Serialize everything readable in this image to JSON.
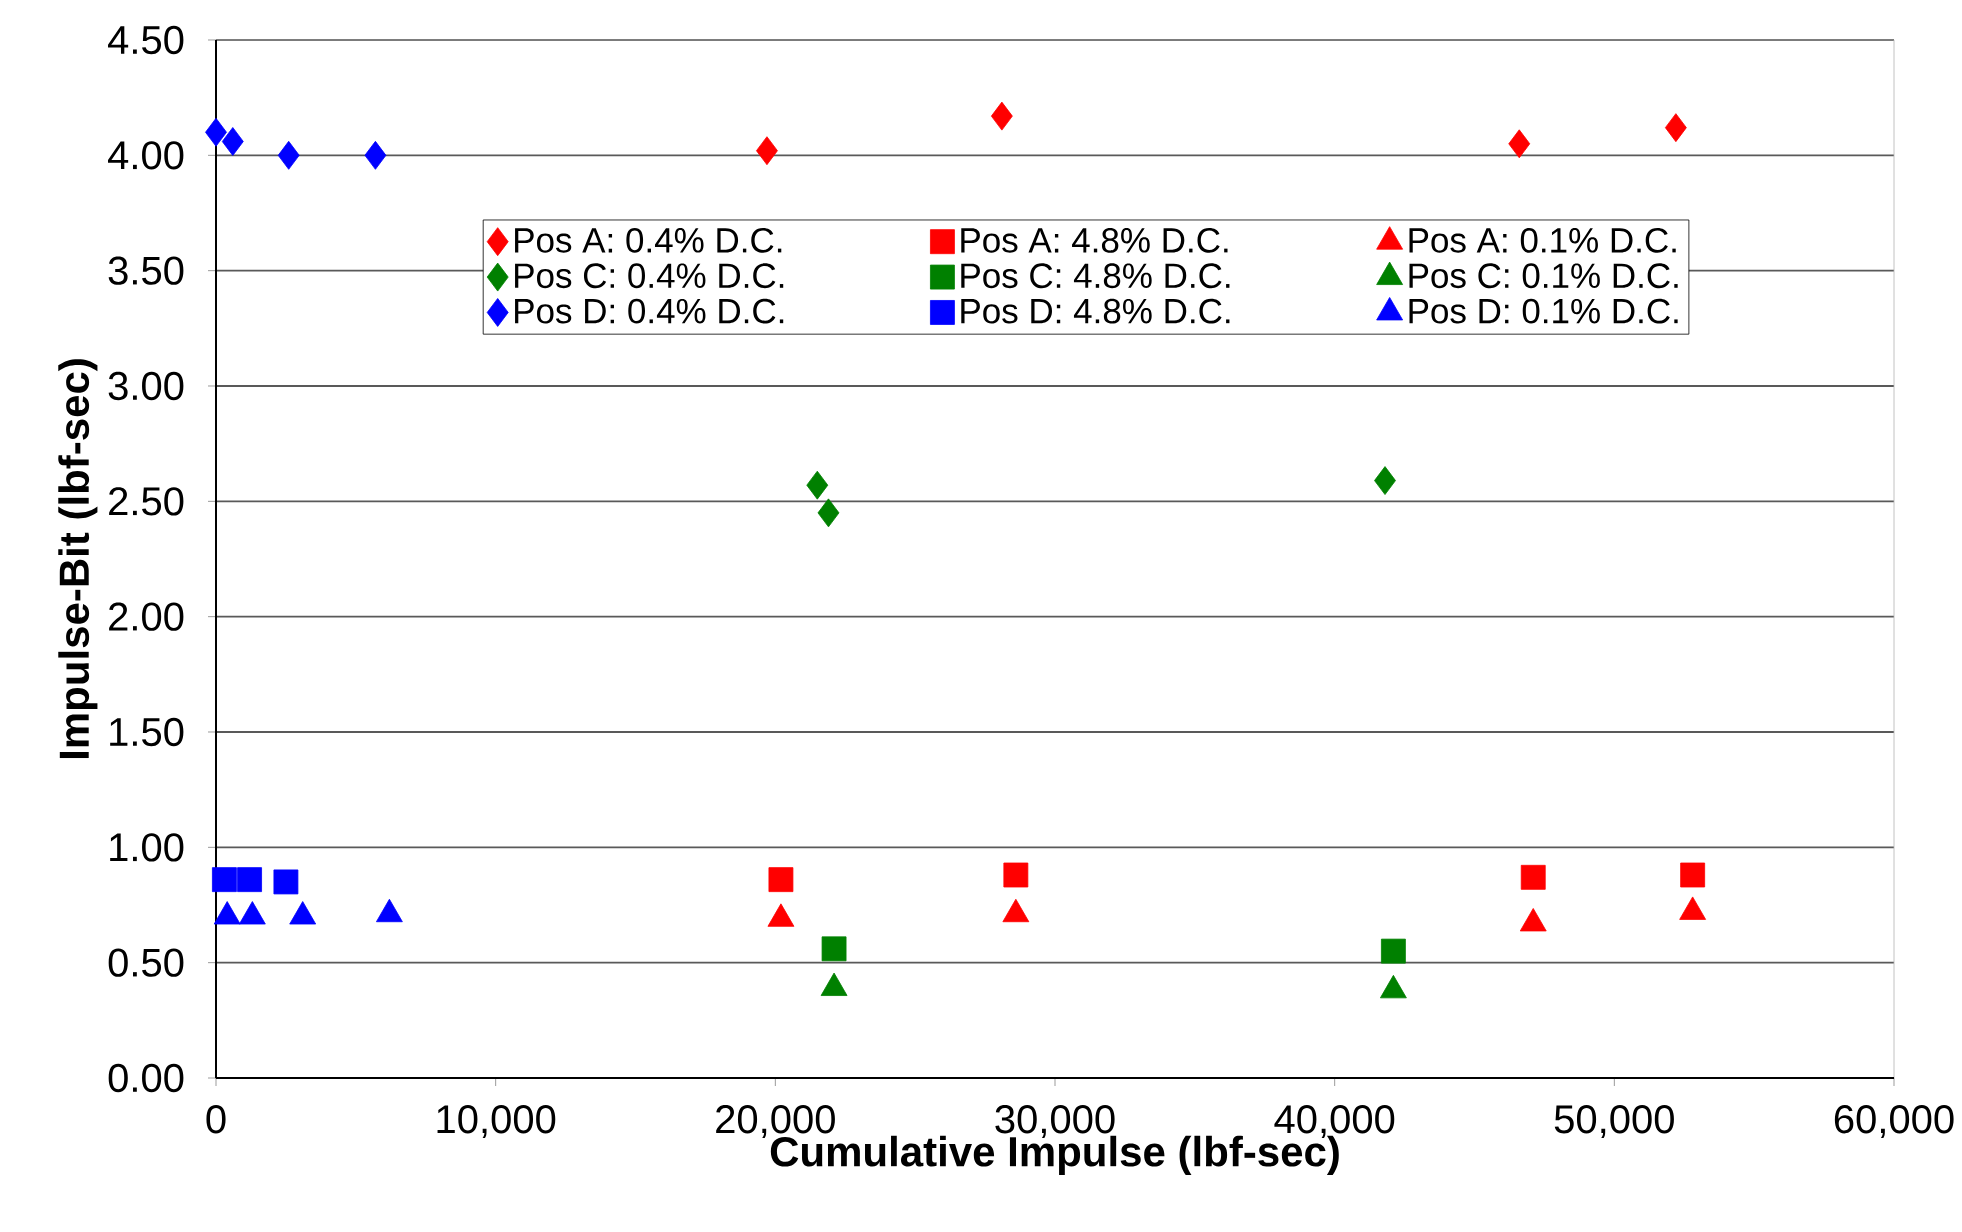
{
  "chart_data": {
    "type": "scatter",
    "xlabel": "Cumulative Impulse (lbf-sec)",
    "ylabel": "Impulse-Bit (lbf-sec)",
    "xlim": [
      0,
      60000
    ],
    "ylim": [
      0,
      4.5
    ],
    "xticks": [
      0,
      {
        "value": 10000,
        "label": "10,000"
      },
      {
        "value": 20000,
        "label": "20,000"
      },
      {
        "value": 30000,
        "label": "30,000"
      },
      {
        "value": 40000,
        "label": "40,000"
      },
      {
        "value": 50000,
        "label": "50,000"
      },
      {
        "value": 60000,
        "label": "60,000"
      }
    ],
    "yticks": [
      {
        "value": 0,
        "label": "0.00"
      },
      {
        "value": 0.5,
        "label": "0.50"
      },
      {
        "value": 1,
        "label": "1.00"
      },
      {
        "value": 1.5,
        "label": "1.50"
      },
      {
        "value": 2,
        "label": "2.00"
      },
      {
        "value": 2.5,
        "label": "2.50"
      },
      {
        "value": 3,
        "label": "3.00"
      },
      {
        "value": 3.5,
        "label": "3.50"
      },
      {
        "value": 4,
        "label": "4.00"
      },
      {
        "value": 4.5,
        "label": "4.50"
      }
    ],
    "grid": "y",
    "legend": "top right",
    "series": [
      {
        "name": "Pos A: 0.4% D.C.",
        "color": "#ff0000",
        "marker": "diamond",
        "x": [
          19700,
          28100,
          46600,
          52200
        ],
        "values": [
          4.02,
          4.17,
          4.05,
          4.12
        ]
      },
      {
        "name": "Pos A: 4.8% D.C.",
        "color": "#ff0000",
        "marker": "square",
        "x": [
          20200,
          28600,
          47100,
          52800
        ],
        "values": [
          0.86,
          0.88,
          0.87,
          0.88
        ]
      },
      {
        "name": "Pos A: 0.1% D.C.",
        "color": "#ff0000",
        "marker": "triangle",
        "x": [
          20200,
          28600,
          47100,
          52800
        ],
        "values": [
          0.69,
          0.71,
          0.67,
          0.72
        ]
      },
      {
        "name": "Pos C: 0.4% D.C.",
        "color": "#008000",
        "marker": "diamond",
        "x": [
          21500,
          21900,
          41800
        ],
        "values": [
          2.57,
          2.45,
          2.59
        ]
      },
      {
        "name": "Pos C: 4.8% D.C.",
        "color": "#008000",
        "marker": "square",
        "x": [
          22100,
          42100
        ],
        "values": [
          0.56,
          0.55
        ]
      },
      {
        "name": "Pos C: 0.1% D.C.",
        "color": "#008000",
        "marker": "triangle",
        "x": [
          22100,
          42100
        ],
        "values": [
          0.39,
          0.38
        ]
      },
      {
        "name": "Pos D: 0.4% D.C.",
        "color": "#0000ff",
        "marker": "diamond",
        "x": [
          0,
          600,
          2600,
          5700
        ],
        "values": [
          4.1,
          4.06,
          4.0,
          4.0
        ]
      },
      {
        "name": "Pos D: 4.8% D.C.",
        "color": "#0000ff",
        "marker": "square",
        "x": [
          300,
          1200,
          2500
        ],
        "values": [
          0.86,
          0.86,
          0.85
        ]
      },
      {
        "name": "Pos D: 0.1% D.C.",
        "color": "#0000ff",
        "marker": "triangle",
        "x": [
          400,
          1300,
          3100,
          6200
        ],
        "values": [
          0.7,
          0.7,
          0.7,
          0.71
        ]
      }
    ]
  }
}
